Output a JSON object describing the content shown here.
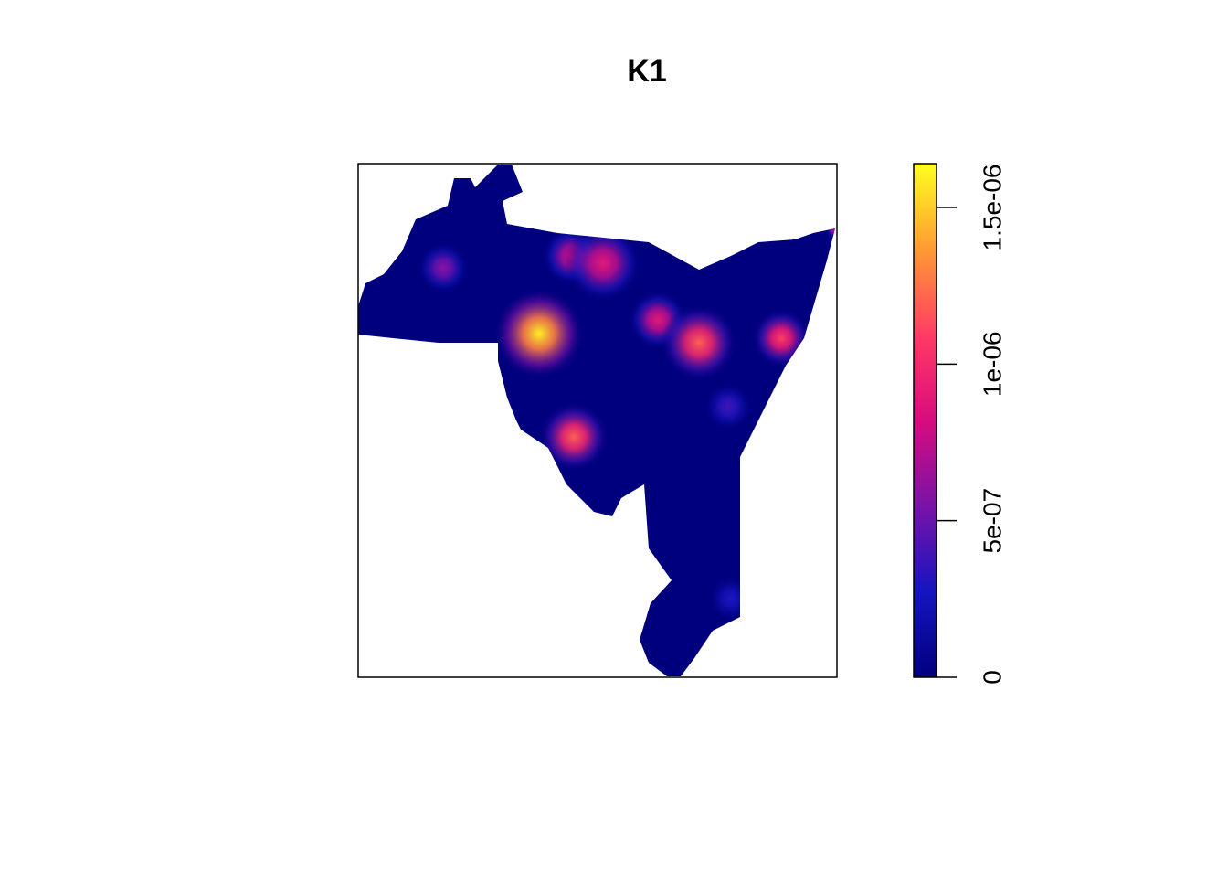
{
  "chart_data": {
    "type": "image",
    "title": "K1",
    "values": [
      1.6e-06,
      1.2e-06,
      9e-07,
      1.2e-06,
      9e-07,
      1.1e-06,
      6e-07,
      4e-07,
      3e-07,
      7e-07,
      8e-07
    ],
    "zlim": [
      0,
      1.64e-06
    ],
    "zticks": [
      0,
      {
        "value": 5e-07,
        "label": "5e-07"
      },
      {
        "value": 1e-06,
        "label": "1e-06"
      },
      {
        "value": 1.5e-06,
        "label": "1.5e-06"
      }
    ],
    "colors": [
      "#00007f",
      "#1515c0",
      "#7a12a8",
      "#d80c7e",
      "#ff3c64",
      "#ff9a34",
      "#ffff1e"
    ]
  }
}
